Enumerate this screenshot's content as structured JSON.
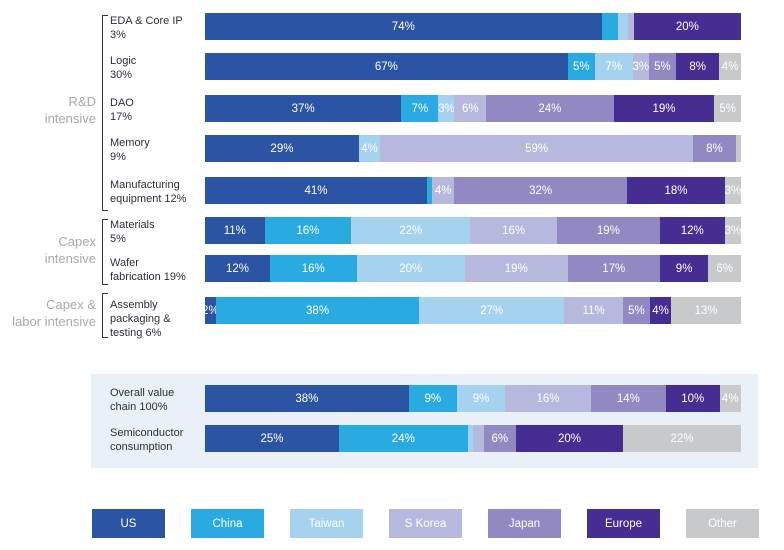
{
  "chart_data": {
    "type": "bar",
    "variant": "horizontal-stacked",
    "unit": "%",
    "grid": false,
    "legend_position": "bottom",
    "legend": [
      {
        "label": "US",
        "color": "#2b54a4"
      },
      {
        "label": "China",
        "color": "#29abe2"
      },
      {
        "label": "Taiwan",
        "color": "#a5d2ef"
      },
      {
        "label": "S Korea",
        "color": "#b7b8dd"
      },
      {
        "label": "Japan",
        "color": "#9289c2"
      },
      {
        "label": "Europe",
        "color": "#452d92"
      },
      {
        "label": "Other",
        "color": "#c8c9cb"
      }
    ],
    "groups": [
      {
        "label": "R&D\nintensive",
        "rows": [
          "EDA & Core IP 3%",
          "Logic 30%",
          "DAO 17%",
          "Memory 9%",
          "Manufacturing equipment 12%"
        ]
      },
      {
        "label": "Capex\nintensive",
        "rows": [
          "Materials 5%",
          "Wafer fabrication 19%"
        ]
      },
      {
        "label": "Capex &\nlabor intensive",
        "rows": [
          "Assembly packaging & testing 6%"
        ]
      }
    ],
    "rows": [
      {
        "label": "EDA & Core IP\n3%",
        "segments": [
          [
            "US",
            74,
            "74%"
          ],
          [
            "China",
            3,
            ""
          ],
          [
            "Taiwan",
            2,
            ""
          ],
          [
            "S Korea",
            1,
            ""
          ],
          [
            "Europe",
            20,
            "20%"
          ]
        ]
      },
      {
        "label": "Logic\n30%",
        "segments": [
          [
            "US",
            67,
            "67%"
          ],
          [
            "China",
            5,
            "5%"
          ],
          [
            "Taiwan",
            7,
            "7%"
          ],
          [
            "S Korea",
            3,
            "3%"
          ],
          [
            "Japan",
            5,
            "5%"
          ],
          [
            "Europe",
            8,
            "8%"
          ],
          [
            "Other",
            4,
            "4%"
          ]
        ]
      },
      {
        "label": "DAO\n17%",
        "segments": [
          [
            "US",
            37,
            "37%"
          ],
          [
            "China",
            7,
            "7%"
          ],
          [
            "Taiwan",
            3,
            "3%"
          ],
          [
            "S Korea",
            6,
            "6%"
          ],
          [
            "Japan",
            24,
            "24%"
          ],
          [
            "Europe",
            19,
            "19%"
          ],
          [
            "Other",
            5,
            "5%"
          ]
        ]
      },
      {
        "label": "Memory\n9%",
        "segments": [
          [
            "US",
            29,
            "29%"
          ],
          [
            "Taiwan",
            4,
            "4%"
          ],
          [
            "S Korea",
            59,
            "59%"
          ],
          [
            "Japan",
            8,
            "8%"
          ],
          [
            "Other",
            1,
            ""
          ]
        ]
      },
      {
        "label": "Manufacturing\nequipment 12%",
        "segments": [
          [
            "US",
            41,
            "41%"
          ],
          [
            "China",
            1,
            ""
          ],
          [
            "S Korea",
            4,
            "4%"
          ],
          [
            "Japan",
            32,
            "32%"
          ],
          [
            "Europe",
            18,
            "18%"
          ],
          [
            "Other",
            3,
            "3%"
          ]
        ]
      },
      {
        "label": "Materials\n5%",
        "segments": [
          [
            "US",
            11,
            "11%"
          ],
          [
            "China",
            16,
            "16%"
          ],
          [
            "Taiwan",
            22,
            "22%"
          ],
          [
            "S Korea",
            16,
            "16%"
          ],
          [
            "Japan",
            19,
            "19%"
          ],
          [
            "Europe",
            12,
            "12%"
          ],
          [
            "Other",
            3,
            "3%"
          ]
        ]
      },
      {
        "label": "Wafer\nfabrication 19%",
        "segments": [
          [
            "US",
            12,
            "12%"
          ],
          [
            "China",
            16,
            "16%"
          ],
          [
            "Taiwan",
            20,
            "20%"
          ],
          [
            "S Korea",
            19,
            "19%"
          ],
          [
            "Japan",
            17,
            "17%"
          ],
          [
            "Europe",
            9,
            "9%"
          ],
          [
            "Other",
            6,
            "6%"
          ]
        ]
      },
      {
        "label": "Assembly\npackaging &\ntesting 6%",
        "segments": [
          [
            "US",
            2,
            "2%"
          ],
          [
            "China",
            38,
            "38%"
          ],
          [
            "Taiwan",
            27,
            "27%"
          ],
          [
            "S Korea",
            11,
            "11%"
          ],
          [
            "Japan",
            5,
            "5%"
          ],
          [
            "Europe",
            4,
            "4%"
          ],
          [
            "Other",
            13,
            "13%"
          ]
        ]
      }
    ],
    "summary_rows": [
      {
        "label": "Overall value\nchain 100%",
        "segments": [
          [
            "US",
            38,
            "38%"
          ],
          [
            "China",
            9,
            "9%"
          ],
          [
            "Taiwan",
            9,
            "9%"
          ],
          [
            "S Korea",
            16,
            "16%"
          ],
          [
            "Japan",
            14,
            "14%"
          ],
          [
            "Europe",
            10,
            "10%"
          ],
          [
            "Other",
            4,
            "4%"
          ]
        ]
      },
      {
        "label": "Semiconductor\nconsumption",
        "segments": [
          [
            "US",
            25,
            "25%"
          ],
          [
            "China",
            24,
            "24%"
          ],
          [
            "Taiwan",
            1,
            ""
          ],
          [
            "S Korea",
            2,
            ""
          ],
          [
            "Japan",
            6,
            "6%"
          ],
          [
            "Europe",
            20,
            "20%"
          ],
          [
            "Other",
            22,
            "22%"
          ]
        ]
      }
    ]
  }
}
